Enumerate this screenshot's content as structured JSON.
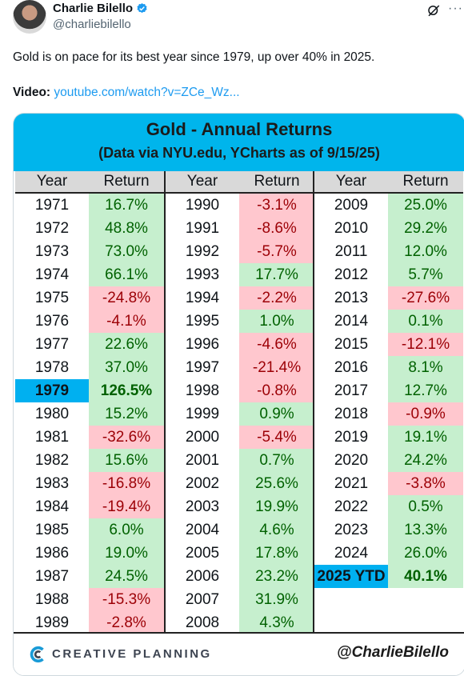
{
  "author": {
    "name": "Charlie Bilello",
    "handle": "@charliebilello"
  },
  "tweet": {
    "text": "Gold is on pace for its best year since 1979, up over 40% in 2025.",
    "video_label": "Video:",
    "video_link": "youtube.com/watch?v=ZCe_Wz..."
  },
  "icons": [
    "verified-badge-icon",
    "grok-icon",
    "more-options-icon",
    "creative-planning-logo-icon"
  ],
  "colors": {
    "title_band": "#00b5ec",
    "positive_bg": "#c6efce",
    "positive_text": "#006100",
    "negative_bg": "#ffc7ce",
    "negative_text": "#9c0006",
    "highlight": "#00b0f0",
    "link": "#1d9bf0"
  },
  "table": {
    "title": "Gold - Annual Returns",
    "subtitle": "(Data via NYU.edu, YCharts as of 9/15/25)",
    "col_year": "Year",
    "col_return": "Return",
    "footer_brand": "CREATIVE PLANNING",
    "footer_handle": "@CharlieBilello"
  },
  "chart_data": {
    "type": "table",
    "title": "Gold - Annual Returns",
    "subtitle": "(Data via NYU.edu, YCharts as of 9/15/25)",
    "columns": [
      "Year",
      "Return"
    ],
    "rows": [
      [
        "1971",
        "16.7%"
      ],
      [
        "1972",
        "48.8%"
      ],
      [
        "1973",
        "73.0%"
      ],
      [
        "1974",
        "66.1%"
      ],
      [
        "1975",
        "-24.8%"
      ],
      [
        "1976",
        "-4.1%"
      ],
      [
        "1977",
        "22.6%"
      ],
      [
        "1978",
        "37.0%"
      ],
      [
        "1979",
        "126.5%"
      ],
      [
        "1980",
        "15.2%"
      ],
      [
        "1981",
        "-32.6%"
      ],
      [
        "1982",
        "15.6%"
      ],
      [
        "1983",
        "-16.8%"
      ],
      [
        "1984",
        "-19.4%"
      ],
      [
        "1985",
        "6.0%"
      ],
      [
        "1986",
        "19.0%"
      ],
      [
        "1987",
        "24.5%"
      ],
      [
        "1988",
        "-15.3%"
      ],
      [
        "1989",
        "-2.8%"
      ],
      [
        "1990",
        "-3.1%"
      ],
      [
        "1991",
        "-8.6%"
      ],
      [
        "1992",
        "-5.7%"
      ],
      [
        "1993",
        "17.7%"
      ],
      [
        "1994",
        "-2.2%"
      ],
      [
        "1995",
        "1.0%"
      ],
      [
        "1996",
        "-4.6%"
      ],
      [
        "1997",
        "-21.4%"
      ],
      [
        "1998",
        "-0.8%"
      ],
      [
        "1999",
        "0.9%"
      ],
      [
        "2000",
        "-5.4%"
      ],
      [
        "2001",
        "0.7%"
      ],
      [
        "2002",
        "25.6%"
      ],
      [
        "2003",
        "19.9%"
      ],
      [
        "2004",
        "4.6%"
      ],
      [
        "2005",
        "17.8%"
      ],
      [
        "2006",
        "23.2%"
      ],
      [
        "2007",
        "31.9%"
      ],
      [
        "2008",
        "4.3%"
      ],
      [
        "2009",
        "25.0%"
      ],
      [
        "2010",
        "29.2%"
      ],
      [
        "2011",
        "12.0%"
      ],
      [
        "2012",
        "5.7%"
      ],
      [
        "2013",
        "-27.6%"
      ],
      [
        "2014",
        "0.1%"
      ],
      [
        "2015",
        "-12.1%"
      ],
      [
        "2016",
        "8.1%"
      ],
      [
        "2017",
        "12.7%"
      ],
      [
        "2018",
        "-0.9%"
      ],
      [
        "2019",
        "19.1%"
      ],
      [
        "2020",
        "24.2%"
      ],
      [
        "2021",
        "-3.8%"
      ],
      [
        "2022",
        "0.5%"
      ],
      [
        "2023",
        "13.3%"
      ],
      [
        "2024",
        "26.0%"
      ],
      [
        "2025 YTD",
        "40.1%"
      ]
    ],
    "highlighted": [
      "1979",
      "2025 YTD"
    ]
  }
}
